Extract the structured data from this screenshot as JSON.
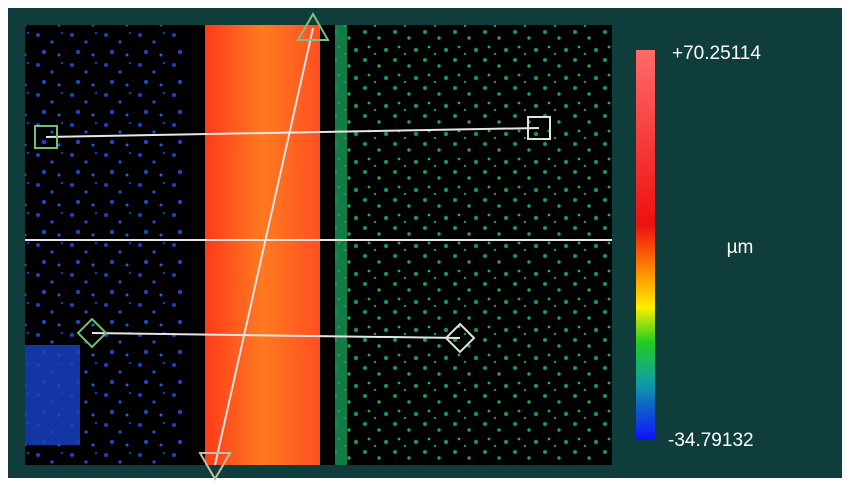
{
  "colorbar": {
    "max_label": "+70.25114",
    "unit": "µm",
    "min_label": "-34.79132"
  }
}
